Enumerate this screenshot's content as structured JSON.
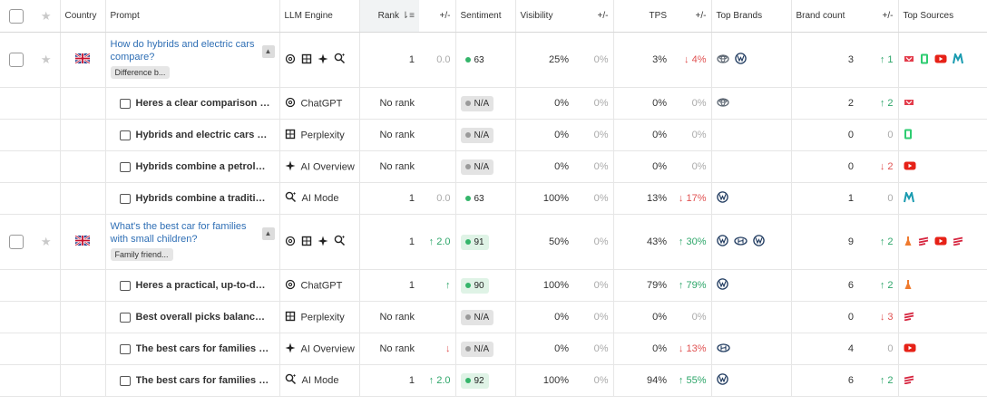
{
  "headers": {
    "country": "Country",
    "prompt": "Prompt",
    "llm_engine": "LLM Engine",
    "rank": "Rank",
    "rank_change": "+/-",
    "sentiment": "Sentiment",
    "visibility": "Visibility",
    "visibility_change": "+/-",
    "tps": "TPS",
    "tps_change": "+/-",
    "top_brands": "Top Brands",
    "brand_count": "Brand count",
    "brand_count_change": "+/-",
    "top_sources": "Top Sources"
  },
  "groups": [
    {
      "question": "How do hybrids and electric cars compare?",
      "tag": "Difference b...",
      "country": "gb-flag",
      "engines": [
        "chatgpt-icon",
        "perplexity-icon",
        "ai-overview-icon",
        "ai-mode-icon"
      ],
      "rank": "1",
      "rank_change": "0.0",
      "rank_change_style": "muted",
      "sentiment": "63",
      "sentiment_style": "plain",
      "visibility": "25%",
      "visibility_change": "0%",
      "tps": "3%",
      "tps_change": "↓ 4%",
      "tps_change_style": "red",
      "brands": [
        "toyota-icon",
        "volkswagen-icon"
      ],
      "brand_count": "3",
      "brand_count_change": "↑ 1",
      "brand_count_change_style": "green",
      "sources": [
        "source-red-icon",
        "source-green-icon",
        "youtube-icon",
        "source-teal-icon"
      ],
      "responses": [
        {
          "text": "Heres a clear comparison of ...",
          "engine": "ChatGPT",
          "engine_icon": "chatgpt-icon",
          "rank": "No rank",
          "rank_change": "",
          "rank_change_style": "muted",
          "sentiment": "N/A",
          "sentiment_style": "na",
          "visibility": "0%",
          "visibility_change": "0%",
          "tps": "0%",
          "tps_change": "0%",
          "tps_change_style": "muted",
          "brands": [
            "toyota-icon"
          ],
          "brand_count": "2",
          "brand_count_change": "↑ 2",
          "brand_count_change_style": "green",
          "sources": [
            "source-red-icon"
          ]
        },
        {
          "text": "Hybrids and electric cars diff...",
          "engine": "Perplexity",
          "engine_icon": "perplexity-icon",
          "rank": "No rank",
          "rank_change": "",
          "rank_change_style": "muted",
          "sentiment": "N/A",
          "sentiment_style": "na",
          "visibility": "0%",
          "visibility_change": "0%",
          "tps": "0%",
          "tps_change": "0%",
          "tps_change_style": "muted",
          "brands": [],
          "brand_count": "0",
          "brand_count_change": "0",
          "brand_count_change_style": "muted",
          "sources": [
            "source-green-icon"
          ]
        },
        {
          "text": "Hybrids combine a petroldie...",
          "engine": "AI Overview",
          "engine_icon": "ai-overview-icon",
          "rank": "No rank",
          "rank_change": "",
          "rank_change_style": "muted",
          "sentiment": "N/A",
          "sentiment_style": "na",
          "visibility": "0%",
          "visibility_change": "0%",
          "tps": "0%",
          "tps_change": "0%",
          "tps_change_style": "muted",
          "brands": [],
          "brand_count": "0",
          "brand_count_change": "↓ 2",
          "brand_count_change_style": "red",
          "sources": [
            "youtube-icon"
          ]
        },
        {
          "text": "Hybrids combine a tradition...",
          "engine": "AI Mode",
          "engine_icon": "ai-mode-icon",
          "rank": "1",
          "rank_change": "0.0",
          "rank_change_style": "muted",
          "sentiment": "63",
          "sentiment_style": "plain",
          "visibility": "100%",
          "visibility_change": "0%",
          "tps": "13%",
          "tps_change": "↓ 17%",
          "tps_change_style": "red",
          "brands": [
            "volkswagen-icon"
          ],
          "brand_count": "1",
          "brand_count_change": "0",
          "brand_count_change_style": "muted",
          "sources": [
            "source-teal-icon"
          ]
        }
      ]
    },
    {
      "question": "What's the best car for families with small children?",
      "tag": "Family friend...",
      "country": "gb-flag",
      "engines": [
        "chatgpt-icon",
        "perplexity-icon",
        "ai-overview-icon",
        "ai-mode-icon"
      ],
      "rank": "1",
      "rank_change": "↑ 2.0",
      "rank_change_style": "green",
      "sentiment": "91",
      "sentiment_style": "good",
      "visibility": "50%",
      "visibility_change": "0%",
      "tps": "43%",
      "tps_change": "↑ 30%",
      "tps_change_style": "green",
      "brands": [
        "volkswagen-icon",
        "hyundai-icon",
        "volkswagen-icon"
      ],
      "brand_count": "9",
      "brand_count_change": "↑ 2",
      "brand_count_change_style": "green",
      "sources": [
        "source-orange-icon",
        "source-stripe-icon",
        "youtube-icon",
        "source-stripe-icon"
      ],
      "responses": [
        {
          "text": "Heres a practical, up-to-date...",
          "engine": "ChatGPT",
          "engine_icon": "chatgpt-icon",
          "rank": "1",
          "rank_change": "↑",
          "rank_change_style": "green",
          "sentiment": "90",
          "sentiment_style": "good",
          "visibility": "100%",
          "visibility_change": "0%",
          "tps": "79%",
          "tps_change": "↑ 79%",
          "tps_change_style": "green",
          "brands": [
            "volkswagen-icon"
          ],
          "brand_count": "6",
          "brand_count_change": "↑ 2",
          "brand_count_change_style": "green",
          "sources": [
            "source-orange-icon"
          ]
        },
        {
          "text": "Best overall picks balance sa...",
          "engine": "Perplexity",
          "engine_icon": "perplexity-icon",
          "rank": "No rank",
          "rank_change": "",
          "rank_change_style": "muted",
          "sentiment": "N/A",
          "sentiment_style": "na",
          "visibility": "0%",
          "visibility_change": "0%",
          "tps": "0%",
          "tps_change": "0%",
          "tps_change_style": "muted",
          "brands": [],
          "brand_count": "0",
          "brand_count_change": "↓ 3",
          "brand_count_change_style": "red",
          "sources": [
            "source-stripe-icon"
          ]
        },
        {
          "text": "The best cars for families wi...",
          "engine": "AI Overview",
          "engine_icon": "ai-overview-icon",
          "rank": "No rank",
          "rank_change": "↓",
          "rank_change_style": "red",
          "sentiment": "N/A",
          "sentiment_style": "na",
          "visibility": "0%",
          "visibility_change": "0%",
          "tps": "0%",
          "tps_change": "↓ 13%",
          "tps_change_style": "red",
          "brands": [
            "hyundai-icon"
          ],
          "brand_count": "4",
          "brand_count_change": "0",
          "brand_count_change_style": "muted",
          "sources": [
            "youtube-icon"
          ]
        },
        {
          "text": "The best cars for families wi...",
          "engine": "AI Mode",
          "engine_icon": "ai-mode-icon",
          "rank": "1",
          "rank_change": "↑ 2.0",
          "rank_change_style": "green",
          "sentiment": "92",
          "sentiment_style": "good",
          "visibility": "100%",
          "visibility_change": "0%",
          "tps": "94%",
          "tps_change": "↑ 55%",
          "tps_change_style": "green",
          "brands": [
            "volkswagen-icon"
          ],
          "brand_count": "6",
          "brand_count_change": "↑ 2",
          "brand_count_change_style": "green",
          "sources": [
            "source-stripe-icon"
          ]
        }
      ]
    }
  ],
  "colors": {
    "link": "#2f6fb5",
    "positive": "#2ea66a",
    "negative": "#e05252",
    "muted": "#aaaaaa",
    "sentiment_good_bg": "#dff3e6",
    "sentiment_na_bg": "#e3e3e3"
  }
}
